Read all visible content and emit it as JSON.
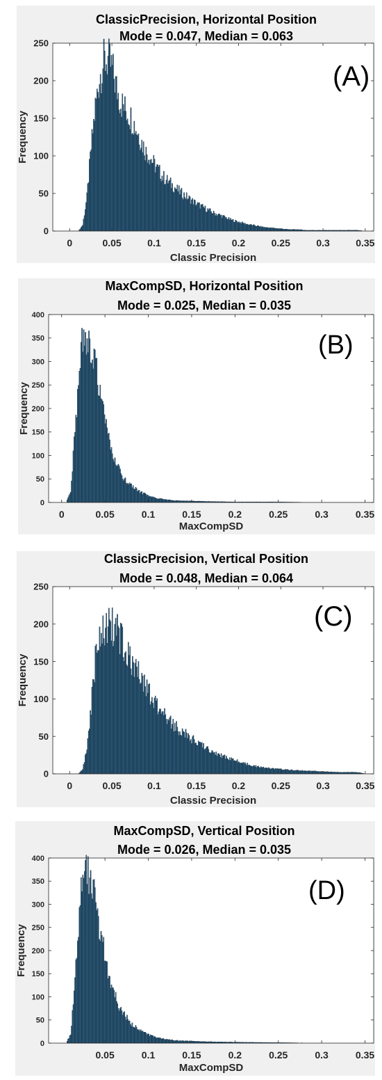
{
  "colors": {
    "bar_fill": "#2e5f80",
    "bar_edge": "#0d2233",
    "panel_bg": "#f0f0f0",
    "axes_bg": "#ffffff"
  },
  "chart_data": [
    {
      "type": "bar",
      "title": "ClassicPrecision, Horizontal Position",
      "subtitle": "Mode = 0.047, Median = 0.063",
      "xlabel": "Classic Precision",
      "ylabel": "Frequency",
      "panel_label": "(A)",
      "xlim": [
        -0.02,
        0.36
      ],
      "ylim": [
        0,
        250
      ],
      "xticks": [
        0,
        0.05,
        0.1,
        0.15,
        0.2,
        0.25,
        0.3,
        0.35
      ],
      "xtick_labels": [
        "0",
        "0.05",
        "0.1",
        "0.15",
        "0.2",
        "0.25",
        "0.3",
        "0.35"
      ],
      "yticks": [
        0,
        50,
        100,
        150,
        200,
        250
      ],
      "grid": false,
      "bin_width": 0.001,
      "series": [
        {
          "x": [
            0.01,
            0.015,
            0.02,
            0.025,
            0.03,
            0.035,
            0.04,
            0.045,
            0.05,
            0.055,
            0.06,
            0.065,
            0.07,
            0.075,
            0.08,
            0.085,
            0.09,
            0.095,
            0.1,
            0.11,
            0.12,
            0.13,
            0.14,
            0.15,
            0.16,
            0.17,
            0.18,
            0.19,
            0.2,
            0.21,
            0.22,
            0.23,
            0.24,
            0.25,
            0.26,
            0.27,
            0.28,
            0.3,
            0.32,
            0.34,
            0.35
          ],
          "values": [
            0,
            8,
            45,
            110,
            165,
            205,
            225,
            228,
            215,
            190,
            172,
            162,
            155,
            145,
            132,
            118,
            105,
            98,
            88,
            72,
            62,
            52,
            44,
            36,
            30,
            24,
            20,
            15,
            12,
            9,
            7,
            5,
            4,
            3,
            2,
            2,
            1,
            1,
            1,
            1,
            0
          ]
        }
      ]
    },
    {
      "type": "bar",
      "title": "MaxCompSD, Horizontal Position",
      "subtitle": "Mode = 0.025, Median = 0.035",
      "xlabel": "MaxCompSD",
      "ylabel": "Frequency",
      "panel_label": "(B)",
      "xlim": [
        -0.015,
        0.36
      ],
      "ylim": [
        0,
        400
      ],
      "xticks": [
        0,
        0.05,
        0.1,
        0.15,
        0.2,
        0.25,
        0.3,
        0.35
      ],
      "xtick_labels": [
        "0",
        "0.05",
        "0.1",
        "0.15",
        "0.2",
        "0.25",
        "0.3",
        "0.35"
      ],
      "yticks": [
        0,
        50,
        100,
        150,
        200,
        250,
        300,
        350,
        400
      ],
      "grid": false,
      "bin_width": 0.001,
      "series": [
        {
          "x": [
            0.005,
            0.01,
            0.015,
            0.02,
            0.025,
            0.03,
            0.035,
            0.04,
            0.045,
            0.05,
            0.055,
            0.06,
            0.065,
            0.07,
            0.08,
            0.09,
            0.1,
            0.11,
            0.12,
            0.13,
            0.15,
            0.17,
            0.2,
            0.25,
            0.3
          ],
          "values": [
            0,
            25,
            150,
            300,
            360,
            350,
            330,
            280,
            220,
            165,
            125,
            95,
            72,
            55,
            35,
            22,
            14,
            9,
            6,
            4,
            3,
            2,
            1,
            1,
            0
          ]
        }
      ]
    },
    {
      "type": "bar",
      "title": "ClassicPrecision, Vertical Position",
      "subtitle": "Mode = 0.048, Median = 0.064",
      "xlabel": "Classic Precision",
      "ylabel": "Frequency",
      "panel_label": "(C)",
      "xlim": [
        -0.02,
        0.36
      ],
      "ylim": [
        0,
        250
      ],
      "xticks": [
        0,
        0.05,
        0.1,
        0.15,
        0.2,
        0.25,
        0.3,
        0.35
      ],
      "xtick_labels": [
        "0",
        "0.05",
        "0.1",
        "0.15",
        "0.2",
        "0.25",
        "0.3",
        "0.35"
      ],
      "yticks": [
        0,
        50,
        100,
        150,
        200,
        250
      ],
      "grid": false,
      "bin_width": 0.001,
      "series": [
        {
          "x": [
            0.01,
            0.015,
            0.02,
            0.025,
            0.03,
            0.035,
            0.04,
            0.045,
            0.05,
            0.055,
            0.06,
            0.065,
            0.07,
            0.075,
            0.08,
            0.085,
            0.09,
            0.095,
            0.1,
            0.11,
            0.12,
            0.13,
            0.14,
            0.15,
            0.16,
            0.17,
            0.18,
            0.19,
            0.2,
            0.21,
            0.22,
            0.23,
            0.24,
            0.25,
            0.26,
            0.28,
            0.3,
            0.32,
            0.34,
            0.35
          ],
          "values": [
            0,
            6,
            35,
            90,
            150,
            185,
            198,
            200,
            198,
            192,
            182,
            168,
            155,
            145,
            135,
            125,
            115,
            105,
            95,
            80,
            68,
            58,
            50,
            42,
            35,
            28,
            24,
            20,
            16,
            13,
            10,
            8,
            7,
            6,
            5,
            4,
            3,
            2,
            2,
            0
          ]
        }
      ]
    },
    {
      "type": "bar",
      "title": "MaxCompSD, Vertical Position",
      "subtitle": "Mode = 0.026, Median = 0.035",
      "xlabel": "MaxCompSD",
      "ylabel": "Frequency",
      "panel_label": "(D)",
      "xlim": [
        -0.015,
        0.36
      ],
      "ylim": [
        0,
        400
      ],
      "xticks": [
        0.05,
        0.1,
        0.15,
        0.2,
        0.25,
        0.3,
        0.35
      ],
      "xtick_labels": [
        "0.05",
        "0.1",
        "0.15",
        "0.2",
        "0.25",
        "0.3",
        "0.35"
      ],
      "yticks": [
        0,
        50,
        100,
        150,
        200,
        250,
        300,
        350,
        400
      ],
      "grid": false,
      "bin_width": 0.001,
      "series": [
        {
          "x": [
            0.005,
            0.01,
            0.015,
            0.02,
            0.025,
            0.03,
            0.035,
            0.04,
            0.045,
            0.05,
            0.055,
            0.06,
            0.065,
            0.07,
            0.08,
            0.09,
            0.1,
            0.11,
            0.12,
            0.13,
            0.15,
            0.17,
            0.2,
            0.25,
            0.3
          ],
          "values": [
            0,
            20,
            130,
            290,
            365,
            370,
            345,
            290,
            235,
            180,
            140,
            110,
            85,
            65,
            42,
            28,
            18,
            12,
            8,
            6,
            4,
            3,
            2,
            1,
            0
          ]
        }
      ]
    }
  ]
}
